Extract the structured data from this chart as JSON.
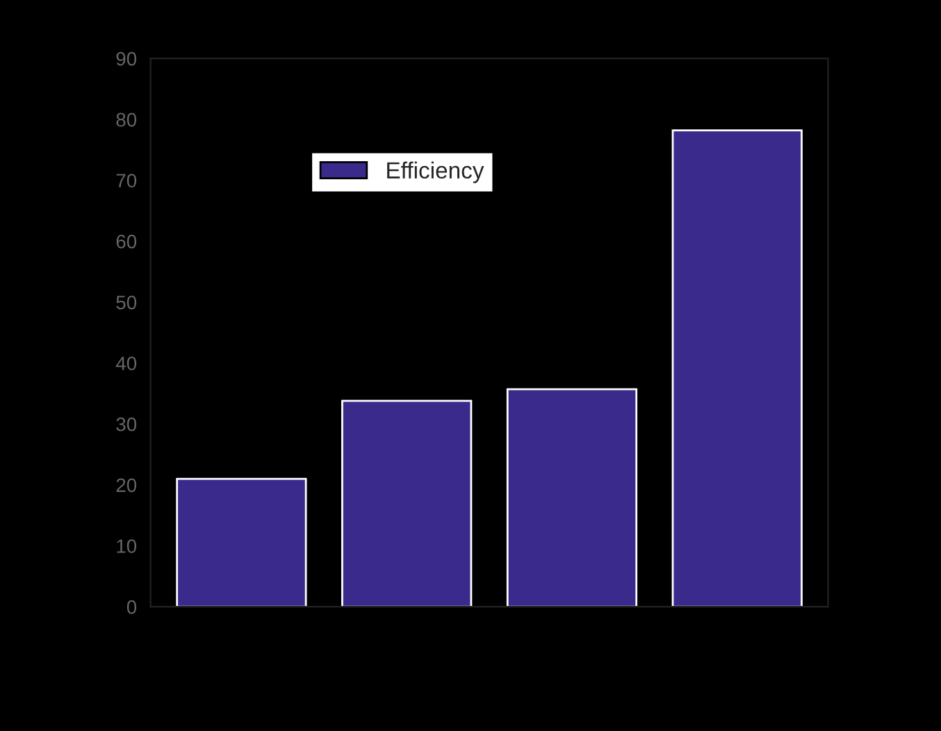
{
  "chart_data": {
    "type": "bar",
    "categories": [
      null,
      null,
      null,
      null
    ],
    "series": [
      {
        "name": "Efficiency",
        "color": "#3a2a8c",
        "values": [
          21,
          33.8,
          35.7,
          78.2
        ]
      }
    ],
    "ylim": [
      0,
      90
    ],
    "yticks": [
      0,
      10,
      20,
      30,
      40,
      50,
      60,
      70,
      80,
      90
    ],
    "legend": "top left",
    "grid": false
  }
}
